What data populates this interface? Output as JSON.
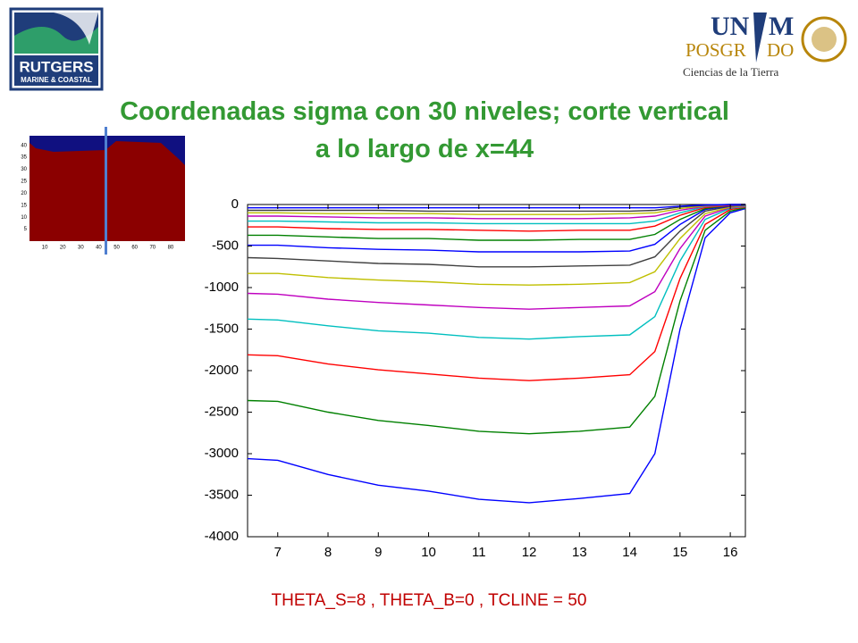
{
  "logos": {
    "left_name": "RUTGERS",
    "left_sub": "MARINE & COASTAL",
    "right_top_a": "UN",
    "right_top_b": "M",
    "right_mid": "POSGR",
    "right_mid_b": "DO",
    "right_sub": "Ciencias de la Tierra"
  },
  "footer": "THETA_S=8 , THETA_B=0 , TCLINE = 50",
  "chart_data": [
    {
      "type": "line",
      "title": "Coordenadas sigma con 30 niveles;  corte vertical a lo largo de x=44",
      "x": [
        6.4,
        7,
        8,
        9,
        10,
        11,
        12,
        13,
        14,
        14.5,
        15,
        15.5,
        16,
        16.3
      ],
      "xlim": [
        6.4,
        16.3
      ],
      "xticks": [
        7,
        8,
        9,
        10,
        11,
        12,
        13,
        14,
        15,
        16
      ],
      "ylim": [
        -4000,
        0
      ],
      "yticks": [
        0,
        -500,
        -1000,
        -1500,
        -2000,
        -2500,
        -3000,
        -3500,
        -4000
      ],
      "series": [
        {
          "color": "#0000ff",
          "values": [
            -3060,
            -3080,
            -3250,
            -3380,
            -3450,
            -3550,
            -3590,
            -3540,
            -3480,
            -3000,
            -1500,
            -400,
            -100,
            -50
          ]
        },
        {
          "color": "#008000",
          "values": [
            -2360,
            -2370,
            -2500,
            -2600,
            -2660,
            -2730,
            -2760,
            -2730,
            -2680,
            -2310,
            -1160,
            -310,
            -80,
            -40
          ]
        },
        {
          "color": "#ff0000",
          "values": [
            -1810,
            -1820,
            -1920,
            -1990,
            -2040,
            -2090,
            -2120,
            -2090,
            -2050,
            -1770,
            -890,
            -240,
            -60,
            -30
          ]
        },
        {
          "color": "#00bfbf",
          "values": [
            -1380,
            -1390,
            -1460,
            -1520,
            -1550,
            -1600,
            -1620,
            -1590,
            -1570,
            -1350,
            -680,
            -180,
            -45,
            -25
          ]
        },
        {
          "color": "#bf00bf",
          "values": [
            -1070,
            -1080,
            -1140,
            -1180,
            -1210,
            -1240,
            -1260,
            -1240,
            -1220,
            -1050,
            -530,
            -140,
            -35,
            -20
          ]
        },
        {
          "color": "#bfbf00",
          "values": [
            -830,
            -830,
            -880,
            -910,
            -930,
            -960,
            -970,
            -960,
            -940,
            -810,
            -410,
            -110,
            -30,
            -15
          ]
        },
        {
          "color": "#404040",
          "values": [
            -640,
            -650,
            -680,
            -710,
            -720,
            -750,
            -750,
            -740,
            -730,
            -630,
            -320,
            -80,
            -20,
            -10
          ]
        },
        {
          "color": "#0000ff",
          "values": [
            -490,
            -490,
            -520,
            -540,
            -550,
            -570,
            -570,
            -570,
            -560,
            -480,
            -240,
            -60,
            -15,
            -10
          ]
        },
        {
          "color": "#008000",
          "values": [
            -370,
            -370,
            -390,
            -410,
            -410,
            -430,
            -430,
            -420,
            -420,
            -360,
            -180,
            -50,
            -10,
            -5
          ]
        },
        {
          "color": "#ff0000",
          "values": [
            -270,
            -270,
            -290,
            -300,
            -300,
            -310,
            -320,
            -310,
            -310,
            -260,
            -130,
            -35,
            -10,
            -5
          ]
        },
        {
          "color": "#00bfbf",
          "values": [
            -200,
            -200,
            -210,
            -220,
            -220,
            -230,
            -230,
            -230,
            -230,
            -200,
            -100,
            -25,
            -5,
            -5
          ]
        },
        {
          "color": "#bf00bf",
          "values": [
            -140,
            -140,
            -150,
            -160,
            -160,
            -170,
            -170,
            -170,
            -160,
            -140,
            -70,
            -20,
            -5,
            0
          ]
        },
        {
          "color": "#bfbf00",
          "values": [
            -100,
            -100,
            -110,
            -110,
            -110,
            -120,
            -120,
            -120,
            -110,
            -100,
            -50,
            -15,
            0,
            0
          ]
        },
        {
          "color": "#404040",
          "values": [
            -70,
            -70,
            -70,
            -70,
            -80,
            -80,
            -80,
            -80,
            -80,
            -70,
            -30,
            -10,
            0,
            0
          ]
        },
        {
          "color": "#0000ff",
          "values": [
            -40,
            -40,
            -40,
            -40,
            -40,
            -40,
            -40,
            -40,
            -40,
            -40,
            -20,
            -5,
            0,
            0
          ]
        }
      ]
    },
    {
      "type": "map",
      "xlim": [
        1.5,
        88
      ],
      "ylim": [
        0,
        44
      ],
      "xticks": [
        10,
        20,
        30,
        40,
        50,
        60,
        70,
        80
      ],
      "yticks": [
        5,
        10,
        15,
        20,
        25,
        30,
        35,
        40
      ],
      "section_x": 44
    }
  ]
}
